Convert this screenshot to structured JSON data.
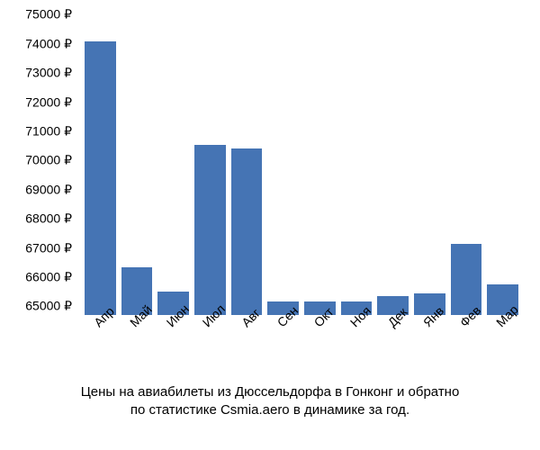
{
  "chart": {
    "type": "bar",
    "background_color": "#ffffff",
    "bar_color": "#4574b4",
    "text_color": "#000000",
    "label_fontsize": 14,
    "caption_fontsize": 15,
    "ymin": 64700,
    "ymax": 75200,
    "ytick_min": 65000,
    "ytick_max": 75000,
    "ytick_step": 1000,
    "currency_suffix": " ₽",
    "bar_gap": 6,
    "categories": [
      "Апр",
      "Май",
      "Июн",
      "Июл",
      "Авг",
      "Сен",
      "Окт",
      "Ноя",
      "Дек",
      "Янв",
      "Фев",
      "Мар"
    ],
    "values": [
      74100,
      66350,
      65500,
      70550,
      70400,
      65150,
      65150,
      65150,
      65350,
      65450,
      67150,
      65750
    ]
  },
  "caption": {
    "line1": "Цены на авиабилеты из Дюссельдорфа в Гонконг и обратно",
    "line2": "по статистике Csmia.aero в динамике за год."
  }
}
